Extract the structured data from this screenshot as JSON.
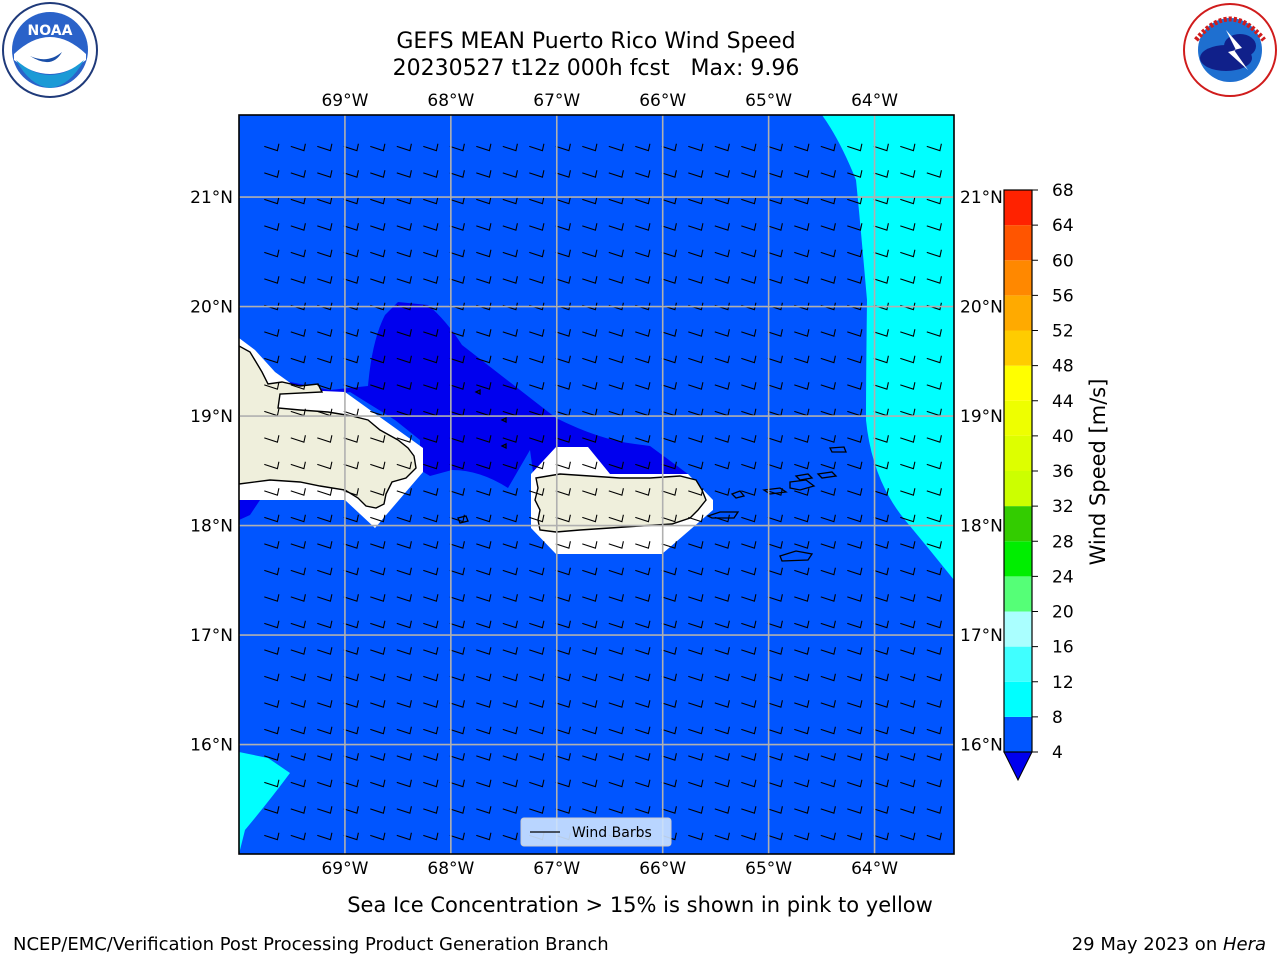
{
  "title_line1": "GEFS MEAN Puerto Rico Wind Speed",
  "title_line2": "20230527 t12z 000h fcst   Max: 9.96",
  "legend_label": "Wind Barbs",
  "subtitle": "Sea Ice Concentration > 15% is shown in pink to yellow",
  "footer_left": "NCEP/EMC/Verification Post Processing Product Generation Branch",
  "footer_right_date": "29 May 2023 on ",
  "footer_right_machine": "Hera",
  "logos": {
    "left": "noaa-logo",
    "right": "nws-logo"
  },
  "chart_data": {
    "type": "heatmap",
    "title": "GEFS MEAN Puerto Rico Wind Speed",
    "variable": "Wind Speed",
    "units": "m/s",
    "max_value": 9.96,
    "lon_ticks": [
      -69,
      -68,
      -67,
      -66,
      -65,
      -64
    ],
    "lon_tick_labels": [
      "69°W",
      "68°W",
      "67°W",
      "66°W",
      "65°W",
      "64°W"
    ],
    "lat_ticks": [
      16,
      17,
      18,
      19,
      20,
      21
    ],
    "lat_tick_labels": [
      "16°N",
      "17°N",
      "18°N",
      "19°N",
      "20°N",
      "21°N"
    ],
    "lon_range": [
      -70.0,
      -63.25
    ],
    "lat_range": [
      15.0,
      21.75
    ],
    "grid": true,
    "colorbar": {
      "label": "Wind Speed [m/s]",
      "extend": "min",
      "levels": [
        4,
        8,
        12,
        16,
        20,
        24,
        28,
        32,
        36,
        40,
        44,
        48,
        52,
        56,
        60,
        64,
        68
      ],
      "colors": [
        "#0055ff",
        "#00ffff",
        "#40ffff",
        "#aaffff",
        "#55ff77",
        "#00ee00",
        "#33cc00",
        "#ccff00",
        "#ddff00",
        "#eeff00",
        "#ffff00",
        "#ffcc00",
        "#ffaa00",
        "#ff8800",
        "#ff5500",
        "#ff2200"
      ],
      "under_color": "#0000ee"
    },
    "field_regions": [
      {
        "range": "< 4 m/s",
        "color": "#0000ee",
        "area": "band from Hispaniola north coast across to north of Puerto Rico"
      },
      {
        "range": "4-8 m/s",
        "color": "#0055ff",
        "area": "most of domain"
      },
      {
        "range": "8-12 m/s",
        "color": "#00ffff",
        "area": "eastern edge and southwest corner"
      }
    ],
    "wind_barbs": {
      "direction": "easterly to east-southeasterly"
    },
    "legend": "Wind Barbs"
  }
}
